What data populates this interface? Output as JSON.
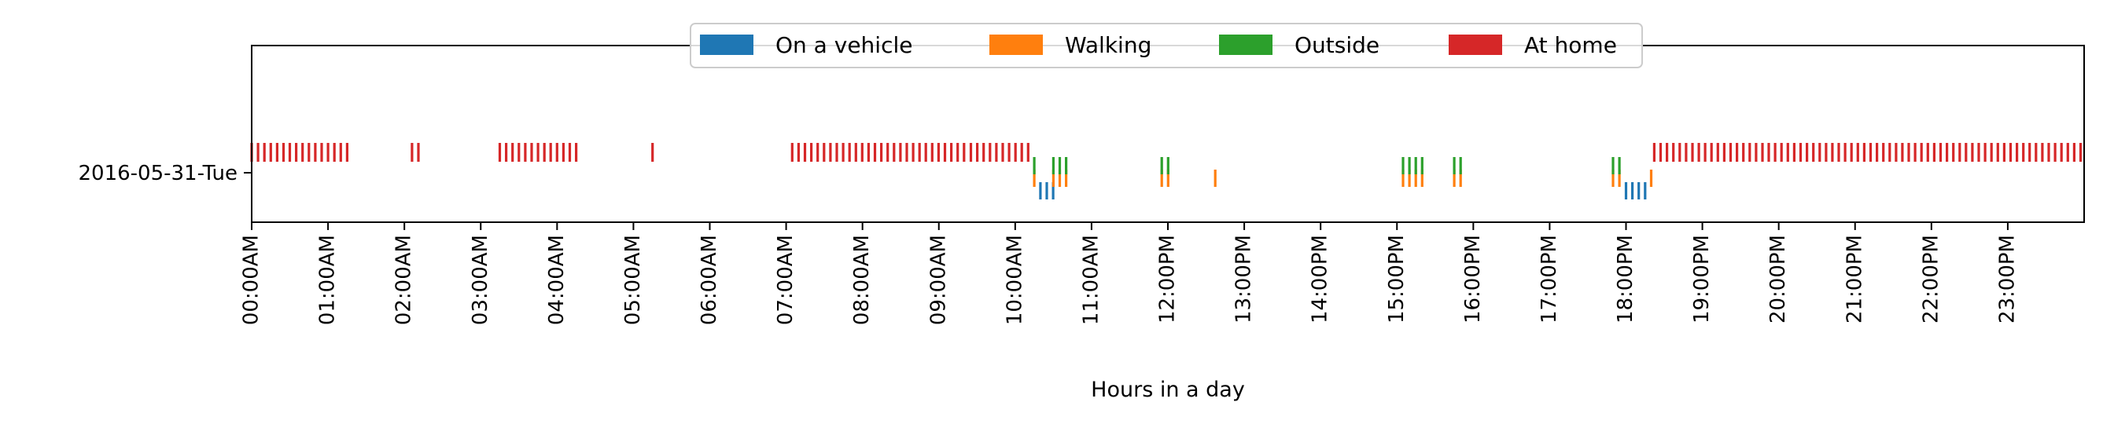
{
  "chart_data": {
    "type": "event-raster",
    "row_label": "2016-05-31-Tue",
    "xlabel": "Hours in a day",
    "xlim": [
      0,
      24
    ],
    "x_ticks": [
      0,
      1,
      2,
      3,
      4,
      5,
      6,
      7,
      8,
      9,
      10,
      11,
      12,
      13,
      14,
      15,
      16,
      17,
      18,
      19,
      20,
      21,
      22,
      23
    ],
    "x_tick_labels": [
      "00:00AM",
      "01:00AM",
      "02:00AM",
      "03:00AM",
      "04:00AM",
      "05:00AM",
      "06:00AM",
      "07:00AM",
      "08:00AM",
      "09:00AM",
      "10:00AM",
      "11:00AM",
      "12:00PM",
      "13:00PM",
      "14:00PM",
      "15:00PM",
      "16:00PM",
      "17:00PM",
      "18:00PM",
      "19:00PM",
      "20:00PM",
      "21:00PM",
      "22:00PM",
      "23:00PM"
    ],
    "legend_position": "top-center",
    "series": [
      {
        "name": "On a vehicle",
        "color": "#1f77b4",
        "level": 0,
        "intervals": [
          [
            10.33,
            10.5
          ],
          [
            18.0,
            18.33
          ]
        ]
      },
      {
        "name": "Walking",
        "color": "#ff7f0e",
        "level": 1,
        "intervals": [
          [
            10.25,
            10.3
          ],
          [
            10.5,
            10.72
          ],
          [
            11.92,
            12.05
          ],
          [
            12.62,
            12.67
          ],
          [
            15.08,
            15.37
          ],
          [
            15.75,
            15.88
          ],
          [
            17.83,
            17.97
          ],
          [
            18.33,
            18.4
          ]
        ]
      },
      {
        "name": "Outside",
        "color": "#2ca02c",
        "level": 2,
        "intervals": [
          [
            10.25,
            10.3
          ],
          [
            10.5,
            10.72
          ],
          [
            11.92,
            12.05
          ],
          [
            15.08,
            15.37
          ],
          [
            15.75,
            15.88
          ],
          [
            17.83,
            17.97
          ]
        ]
      },
      {
        "name": "At home",
        "color": "#d62728",
        "level": 3,
        "intervals": [
          [
            0.0,
            1.33
          ],
          [
            2.1,
            2.25
          ],
          [
            3.25,
            4.33
          ],
          [
            5.25,
            5.33
          ],
          [
            7.08,
            9.33
          ],
          [
            9.42,
            10.25
          ],
          [
            18.37,
            24.0
          ]
        ]
      }
    ]
  }
}
